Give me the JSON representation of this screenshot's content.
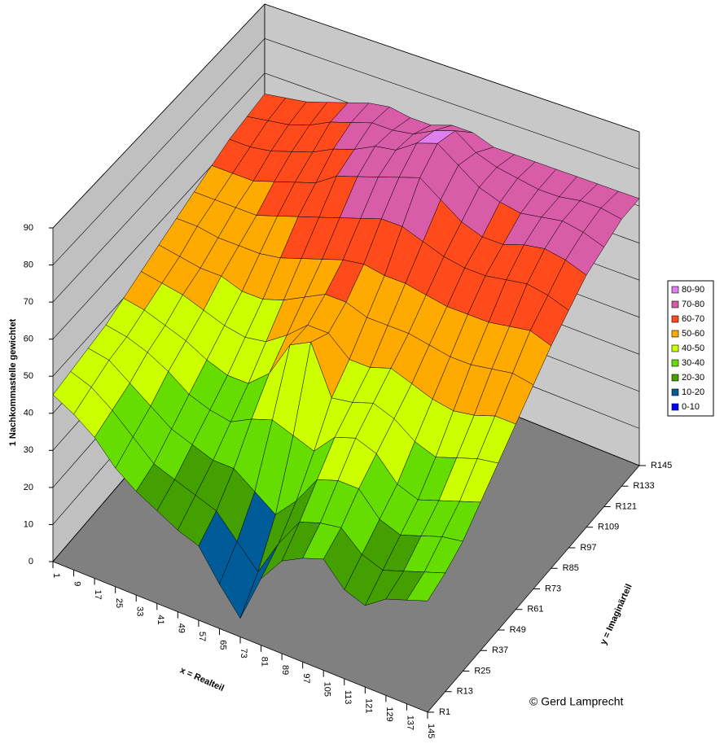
{
  "chart_data": {
    "type": "surface",
    "z_label": "1 Nachkommastelle gewichtet",
    "x_label": "x = Realteil",
    "y_label": "y = Imaginärteil",
    "credit": "© Gerd Lamprecht",
    "zlim": [
      0,
      90
    ],
    "zticks": [
      0,
      10,
      20,
      30,
      40,
      50,
      60,
      70,
      80,
      90
    ],
    "grid": true,
    "categories": [
      1,
      9,
      17,
      25,
      33,
      41,
      49,
      57,
      65,
      73,
      81,
      89,
      97,
      105,
      113,
      121,
      129,
      137,
      145
    ],
    "series": [
      {
        "name": "R1",
        "values": [
          45,
          42,
          38,
          32,
          28,
          25,
          22,
          20,
          12,
          5,
          18,
          25,
          28,
          30,
          24,
          22,
          26,
          28,
          30
        ]
      },
      {
        "name": "R13",
        "values": [
          46,
          44,
          40,
          35,
          30,
          28,
          26,
          24,
          18,
          12,
          22,
          30,
          32,
          33,
          28,
          26,
          28,
          30,
          32
        ]
      },
      {
        "name": "R25",
        "values": [
          47,
          46,
          42,
          38,
          34,
          32,
          30,
          30,
          26,
          22,
          28,
          36,
          38,
          38,
          32,
          30,
          32,
          34,
          35
        ]
      },
      {
        "name": "R37",
        "values": [
          48,
          47,
          45,
          42,
          38,
          36,
          35,
          38,
          40,
          38,
          36,
          42,
          44,
          42,
          36,
          34,
          36,
          38,
          40
        ]
      },
      {
        "name": "R49",
        "values": [
          50,
          49,
          47,
          45,
          42,
          40,
          40,
          45,
          55,
          58,
          45,
          46,
          48,
          46,
          42,
          40,
          42,
          44,
          45
        ]
      },
      {
        "name": "R61",
        "values": [
          52,
          51,
          50,
          48,
          46,
          45,
          46,
          50,
          55,
          55,
          50,
          50,
          52,
          50,
          48,
          47,
          48,
          50,
          50
        ]
      },
      {
        "name": "R73",
        "values": [
          54,
          53,
          52,
          52,
          50,
          50,
          52,
          55,
          58,
          58,
          56,
          56,
          56,
          55,
          54,
          54,
          55,
          56,
          55
        ]
      },
      {
        "name": "R85",
        "values": [
          56,
          56,
          55,
          55,
          55,
          56,
          58,
          60,
          62,
          63,
          62,
          62,
          61,
          60,
          60,
          60,
          61,
          62,
          60
        ]
      },
      {
        "name": "R97",
        "values": [
          58,
          58,
          58,
          58,
          60,
          62,
          64,
          66,
          68,
          70,
          70,
          68,
          66,
          65,
          65,
          66,
          67,
          66,
          64
        ]
      },
      {
        "name": "R109",
        "values": [
          60,
          60,
          60,
          62,
          64,
          66,
          70,
          72,
          74,
          76,
          78,
          74,
          70,
          68,
          68,
          70,
          71,
          70,
          68
        ]
      },
      {
        "name": "R121",
        "values": [
          62,
          62,
          63,
          65,
          67,
          70,
          72,
          75,
          76,
          80,
          82,
          78,
          74,
          72,
          71,
          72,
          73,
          72,
          70
        ]
      },
      {
        "name": "R133",
        "values": [
          63,
          64,
          65,
          67,
          70,
          72,
          74,
          74,
          75,
          78,
          80,
          76,
          74,
          73,
          72,
          72,
          73,
          73,
          72
        ]
      },
      {
        "name": "R145",
        "values": [
          64,
          65,
          66,
          68,
          70,
          72,
          73,
          72,
          72,
          74,
          74,
          72,
          72,
          72,
          72,
          72,
          72,
          72,
          72
        ]
      }
    ],
    "color_bands": [
      {
        "label": "80-90",
        "from": 80,
        "to": 90,
        "color": "#e080f0"
      },
      {
        "label": "70-80",
        "from": 70,
        "to": 80,
        "color": "#d85ca8"
      },
      {
        "label": "60-70",
        "from": 60,
        "to": 70,
        "color": "#ff4a1c"
      },
      {
        "label": "50-60",
        "from": 50,
        "to": 60,
        "color": "#ffaa00"
      },
      {
        "label": "40-50",
        "from": 40,
        "to": 50,
        "color": "#ccff00"
      },
      {
        "label": "30-40",
        "from": 30,
        "to": 40,
        "color": "#66dd00"
      },
      {
        "label": "20-30",
        "from": 20,
        "to": 30,
        "color": "#44a000"
      },
      {
        "label": "10-20",
        "from": 10,
        "to": 20,
        "color": "#005c99"
      },
      {
        "label": "0-10",
        "from": 0,
        "to": 10,
        "color": "#0000ff"
      }
    ]
  }
}
